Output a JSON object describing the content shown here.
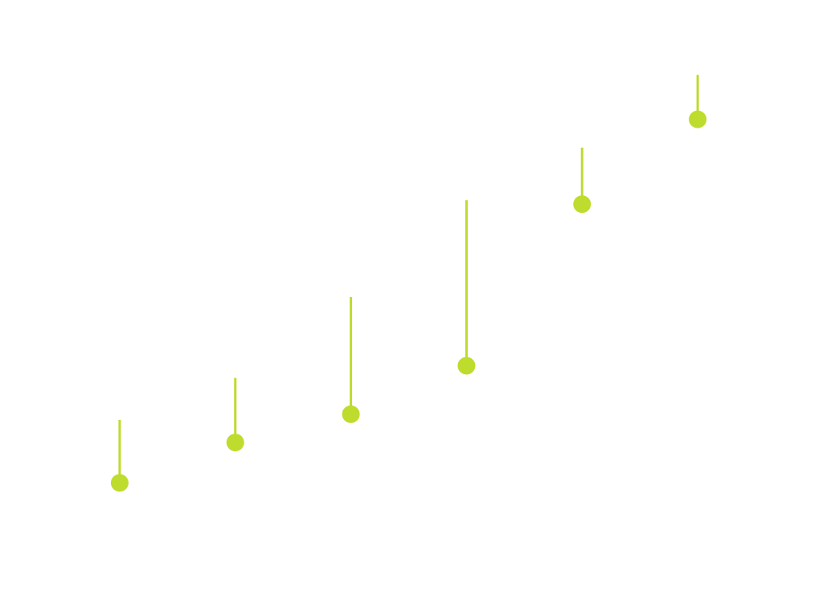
{
  "chart_data": {
    "type": "scatter",
    "title": "",
    "xlabel": "",
    "ylabel": "",
    "grid": false,
    "legend": "none",
    "x": [
      1,
      2,
      3,
      4,
      5,
      6
    ],
    "y": [
      1.0,
      1.5,
      1.85,
      2.45,
      4.45,
      5.5
    ],
    "upper": [
      1.78,
      2.3,
      3.3,
      4.5,
      5.15,
      6.05
    ],
    "xlim": [
      0.5,
      6.5
    ],
    "ylim": [
      0.0,
      6.5
    ],
    "color": "#bedc2d"
  }
}
